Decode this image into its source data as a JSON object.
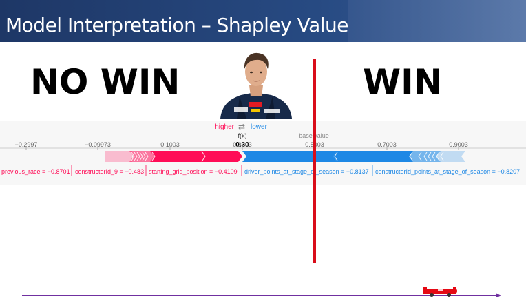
{
  "slide": {
    "title": "Model Interpretation – Shapley Value",
    "no_win_label": "NO WIN",
    "win_label": "WIN"
  },
  "shap_plot": {
    "higher_label": "higher",
    "arrow_glyph": "⇄",
    "lower_label": "lower",
    "fx_label": "f(x)",
    "fx_value": "0.30",
    "base_value_label": "base value",
    "axis_ticks": [
      "−0.2997",
      "−0.09973",
      "0.1003",
      "0.3003",
      "0.5003",
      "0.7003",
      "0.9003"
    ],
    "feature_labels": [
      "previous_race = −0.8701",
      "constructorId_9 = −0.483",
      "starting_grid_position = −0.4109",
      "driver_points_at_stage_of_season = −0.8137",
      "constructorId_points_at_stage_of_season = −0.8207"
    ]
  },
  "colors": {
    "header": "#1e3766",
    "higher": "#ff0d57",
    "lower": "#1e88e5",
    "divider": "#d90d1a",
    "timeline": "#7030a0"
  },
  "icons": [
    "driver-portrait",
    "race-car-icon"
  ]
}
